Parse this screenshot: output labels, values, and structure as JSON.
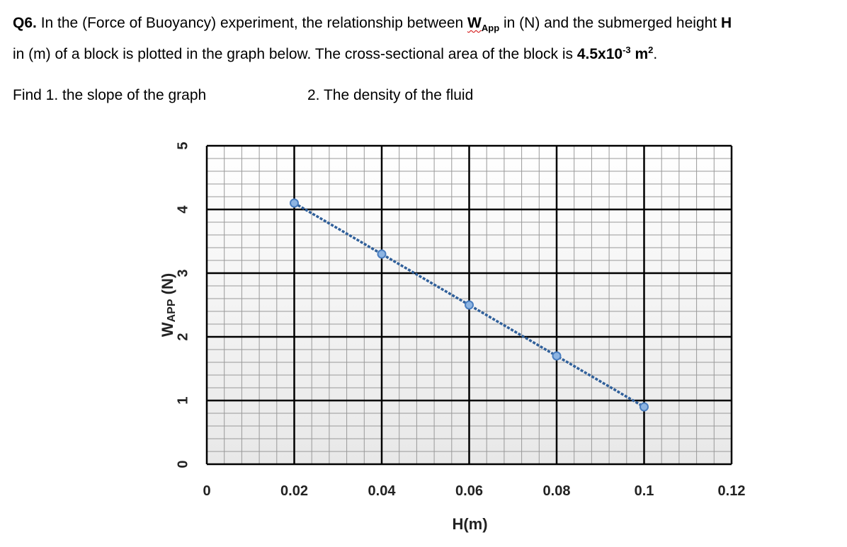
{
  "question": {
    "number": "Q6.",
    "line1_text_a": " In the (Force of Buoyancy) experiment, the relationship between ",
    "line1_w": "W",
    "line1_sub": "App",
    "line1_text_b": " in (N) and the submerged height ",
    "line1_h": "H",
    "line2_text_a": "in (m) of a block is plotted in the graph below. The cross-sectional area of the block is ",
    "line2_area": "4.5x10",
    "line2_area_exp": "-3",
    "line2_unit": " m",
    "line2_unit_exp": "2",
    "line2_end": ".",
    "find1": "Find 1. the slope of the graph",
    "find2": "2. The density of the fluid"
  },
  "chart_data": {
    "type": "line",
    "xlabel": "H(m)",
    "ylabel_main": "W",
    "ylabel_sub": "APP",
    "ylabel_unit": " (N)",
    "xlim": [
      0,
      0.12
    ],
    "ylim": [
      0,
      5
    ],
    "x_ticks": [
      "0",
      "0.02",
      "0.04",
      "0.06",
      "0.08",
      "0.1",
      "0.12"
    ],
    "y_ticks": [
      "0",
      "1",
      "2",
      "3",
      "4",
      "5"
    ],
    "grid": true,
    "series": [
      {
        "x": [
          0.02,
          0.04,
          0.06,
          0.08,
          0.1
        ],
        "y": [
          4.1,
          3.3,
          2.5,
          1.7,
          0.9
        ]
      }
    ],
    "colors": {
      "line": "#2f5f9a",
      "marker_fill": "#8db4e2",
      "marker_stroke": "#4a7ec0",
      "plot_bg_top": "#ffffff",
      "plot_bg_bottom": "#e8e8e8"
    }
  }
}
